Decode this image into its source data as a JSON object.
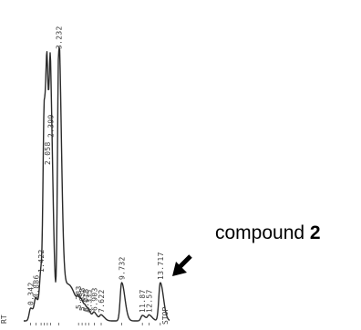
{
  "chart_data": {
    "type": "line",
    "x_axis_label": "RT",
    "end_label": "STOP",
    "peaks": [
      {
        "rt": 0.342,
        "label": "0.342",
        "height": 14
      },
      {
        "rt": 0.886,
        "label": "0.886",
        "height": 22
      },
      {
        "rt": 1.422,
        "label": "1.422",
        "height": 50
      },
      {
        "rt": 1.75,
        "label": "",
        "height": 205
      },
      {
        "rt": 2.058,
        "label": "2.058",
        "height": 168
      },
      {
        "rt": 2.399,
        "label": "2.399",
        "height": 198
      },
      {
        "rt": 3.232,
        "label": "3.232",
        "height": 295
      },
      {
        "rt": 5.283,
        "label": "5.283",
        "height": 10
      },
      {
        "rt": 5.658,
        "label": "5.658",
        "height": 8
      },
      {
        "rt": 6.015,
        "label": "6.015",
        "height": 7
      },
      {
        "rt": 6.335,
        "label": "6.335",
        "height": 6
      },
      {
        "rt": 6.903,
        "label": "6.903",
        "height": 8
      },
      {
        "rt": 7.622,
        "label": "7.622",
        "height": 6
      },
      {
        "rt": 9.732,
        "label": "9.732",
        "height": 42
      },
      {
        "rt": 11.87,
        "label": "11.87",
        "height": 6
      },
      {
        "rt": 12.57,
        "label": "12.57",
        "height": 6
      },
      {
        "rt": 13.717,
        "label": "13.717",
        "height": 42
      }
    ],
    "x_range": [
      0,
      14.3
    ],
    "grid": false,
    "legend": "none"
  },
  "annotation": {
    "text": "compound ",
    "number": "2"
  }
}
